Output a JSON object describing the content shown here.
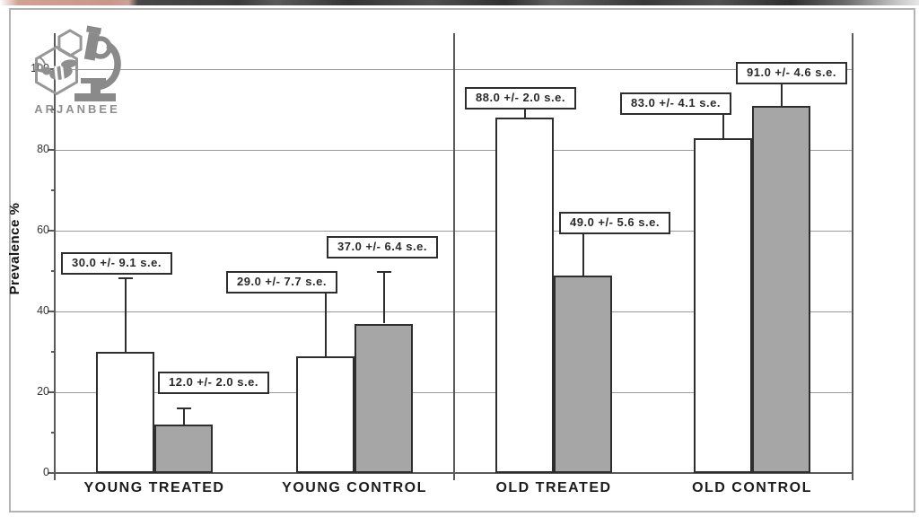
{
  "brand": {
    "name": "ARJANBEE"
  },
  "chart_data": {
    "type": "bar",
    "title": "",
    "xlabel": "",
    "ylabel": "Prevalence %",
    "categories": [
      "YOUNG TREATED",
      "YOUNG CONTROL",
      "OLD TREATED",
      "OLD CONTROL"
    ],
    "series": [
      {
        "name": "white_bars",
        "fill": "#ffffff",
        "values": [
          30.0,
          29.0,
          88.0,
          83.0
        ],
        "se": [
          9.1,
          7.7,
          2.0,
          4.1
        ]
      },
      {
        "name": "gray_bars",
        "fill": "#a6a6a6",
        "values": [
          12.0,
          37.0,
          49.0,
          91.0
        ],
        "se": [
          2.0,
          6.4,
          5.6,
          4.6
        ]
      }
    ],
    "annotations": [
      {
        "bar": "young-treated-white",
        "text": "30.0 +/- 9.1 s.e."
      },
      {
        "bar": "young-treated-gray",
        "text": "12.0 +/- 2.0 s.e."
      },
      {
        "bar": "young-control-white",
        "text": "29.0 +/- 7.7 s.e."
      },
      {
        "bar": "young-control-gray",
        "text": "37.0 +/- 6.4 s.e."
      },
      {
        "bar": "old-treated-white",
        "text": "88.0 +/- 2.0 s.e."
      },
      {
        "bar": "old-treated-gray",
        "text": "49.0 +/- 5.6 s.e."
      },
      {
        "bar": "old-control-white",
        "text": "83.0 +/- 4.1 s.e."
      },
      {
        "bar": "old-control-gray",
        "text": "91.0 +/- 4.6 s.e."
      }
    ],
    "y_axis": {
      "major_ticks": [
        0,
        20,
        40,
        60,
        80,
        100
      ],
      "minor_ticks": [
        10,
        30,
        50,
        70,
        90
      ],
      "range": [
        0,
        109
      ]
    },
    "grid": true,
    "legend": null,
    "group_divider_between": [
      "YOUNG CONTROL",
      "OLD TREATED"
    ],
    "colors": {
      "bar_outline": "#2e2e2e",
      "gray_fill": "#a6a6a6",
      "gridline": "#9b9b9b",
      "axis": "#5a5a5a",
      "logo": "#8f8f8f"
    }
  }
}
